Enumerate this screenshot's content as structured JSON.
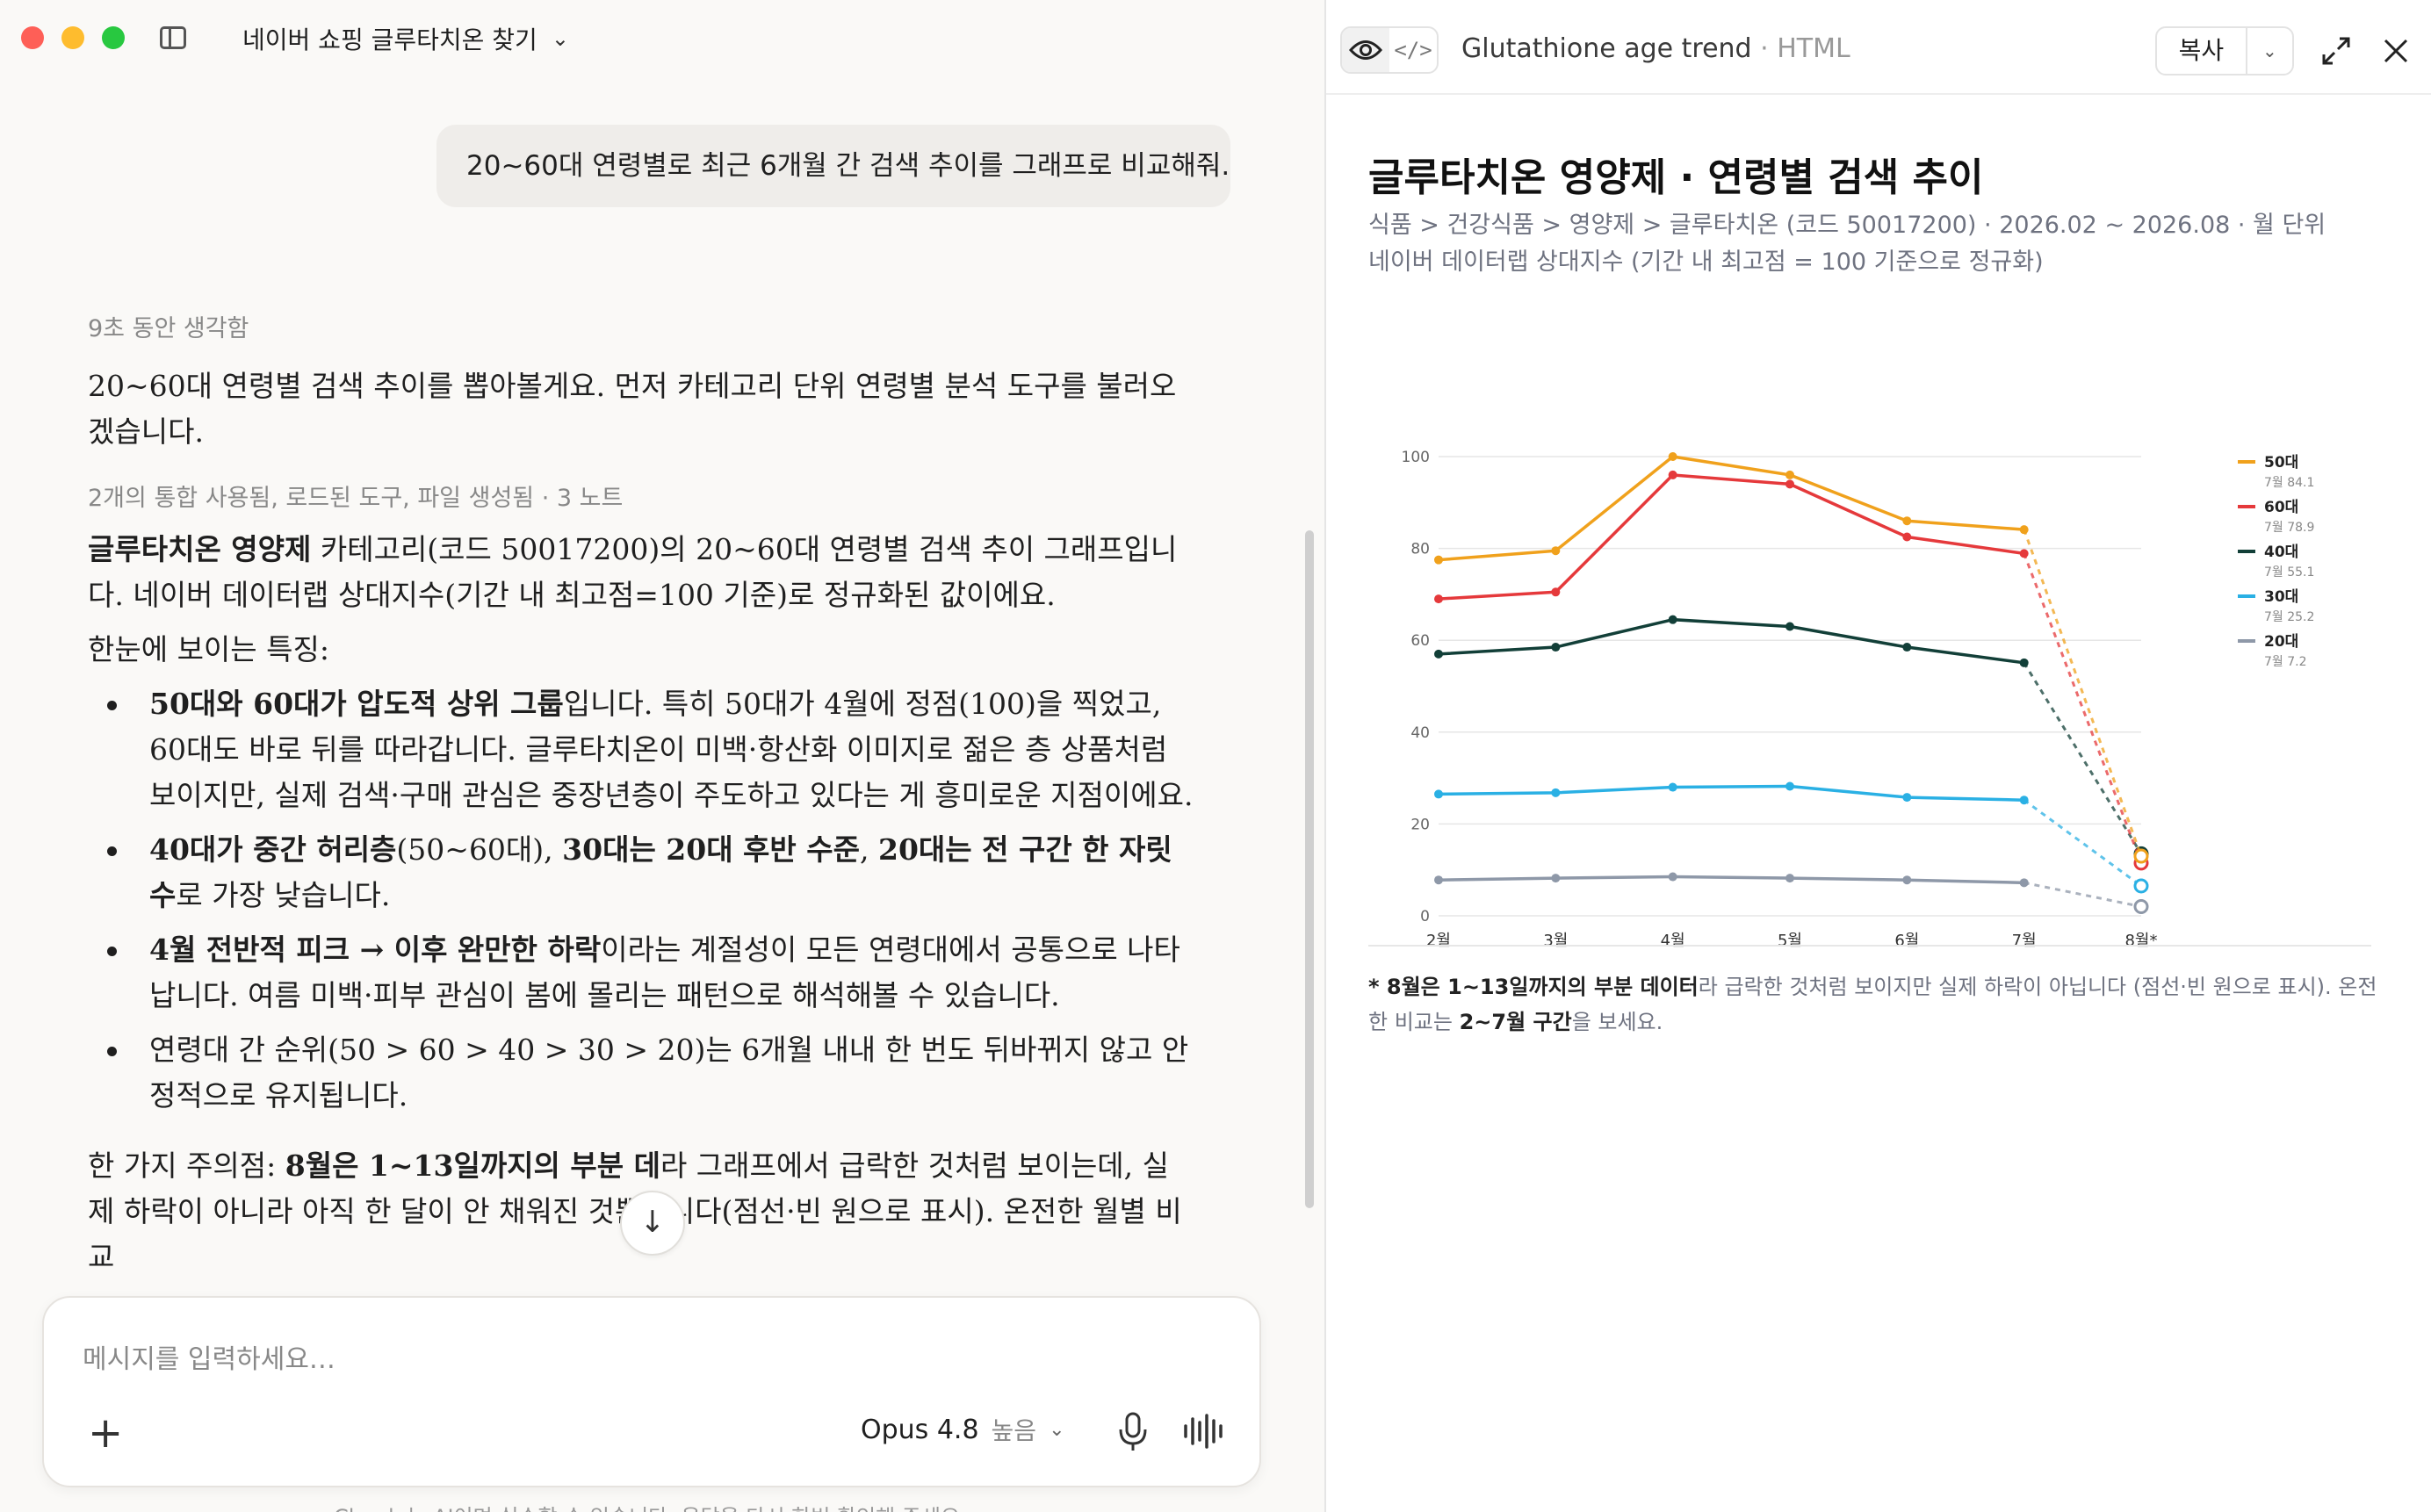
{
  "conversation": {
    "title": "네이버 쇼핑 글루타치온 찾기",
    "user_message": "20~60대 연령별로 최근 6개월 간 검색 추이를 그래프로 비교해줘.",
    "thinking_label": "9초 동안 생각함",
    "intro": "20~60대 연령별 검색 추이를 뽑아볼게요. 먼저 카테고리 단위 연령별 분석 도구를 불러오겠습니다.",
    "tools_meta": "2개의 통합 사용됨, 로드된 도구, 파일 생성됨 · 3 노트",
    "answer": {
      "p1_bold": "글루타치온 영양제",
      "p1_rest": " 카테고리(코드 50017200)의 20~60대 연령별 검색 추이 그래프입니다. 네이버 데이터랩 상대지수(기간 내 최고점=100 기준)로 정규화된 값이에요.",
      "features_heading": "한눈에 보이는 특징:",
      "b1_bold": "50대와 60대가 압도적 상위 그룹",
      "b1_rest": "입니다. 특히 50대가 4월에 정점(100)을 찍었고, 60대도 바로 뒤를 따라갑니다. 글루타치온이 미백·항산화 이미지로 젊은 층 상품처럼 보이지만, 실제 검색·구매 관심은 중장년층이 주도하고 있다는 게 흥미로운 지점이에요.",
      "b2_bold1": "40대가 중간 허리층",
      "b2_mid1": "(50~60대), ",
      "b2_bold2": "30대는 20대 후반 수준",
      "b2_mid2": ", ",
      "b2_bold3": "20대는 전 구간 한 자릿수",
      "b2_rest": "로 가장 낮습니다.",
      "b3_bold": "4월 전반적 피크 → 이후 완만한 하락",
      "b3_rest": "이라는 계절성이 모든 연령대에서 공통으로 나타납니다. 여름 미백·피부 관심이 봄에 몰리는 패턴으로 해석해볼 수 있습니다.",
      "b4": "연령대 간 순위(50 > 60 > 40 > 30 > 20)는 6개월 내내 한 번도 뒤바뀌지 않고 안정적으로 유지됩니다.",
      "caveat_lead": "한 가지 주의점: ",
      "caveat_bold": "8월은 1~13일까지의 부분 데",
      "caveat_rest": "라 그래프에서 급락한 것처럼 보이는데, 실제 하락이 아니라 아직 한 달이 안 채워진 것뿐입니다(점선·빈 원으로 표시). 온전한 월별 비교"
    },
    "scroll_down_icon": "arrow-down-icon"
  },
  "composer": {
    "placeholder": "메시지를 입력하세요…",
    "model": "Opus 4.8",
    "effort": "높음",
    "footer": "Claude는 AI이며 실수할 수 있습니다. 응답을 다시 한번 확인해 주세요."
  },
  "artifact": {
    "title": "Glutathione age trend",
    "kind": " · HTML",
    "copy_label": "복사",
    "chart_title": "글루타치온 영양제 · 연령별 검색 추이",
    "breadcrumb": "식품 > 건강식품 > 영양제 > 글루타치온 (코드 50017200) · 2026.02 ~ 2026.08 · 월 단위",
    "note": "네이버 데이터랩 상대지수 (기간 내 최고점 = 100 기준으로 정규화)",
    "footnote_bold": "* 8월은 1~13일까지의 부분 데이터",
    "footnote_mid": "라 급락한 것처럼 보이지만 실제 하락이 아닙니다 (점선·빈 원으로 표시). 온전한 비교는 ",
    "footnote_bold2": "2~7월 구간",
    "footnote_end": "을 보세요."
  },
  "chart_data": {
    "type": "line",
    "x": [
      "2월",
      "3월",
      "4월",
      "5월",
      "6월",
      "7월",
      "8월*"
    ],
    "y_ticks": [
      0,
      20,
      40,
      60,
      80,
      100
    ],
    "ylim": [
      0,
      100
    ],
    "grid": true,
    "legend_position": "right",
    "partial_last_point": true,
    "series": [
      {
        "name": "50대",
        "sub": "7월 84.1",
        "color": "#f0a11c",
        "values": [
          77.5,
          79.5,
          100,
          96,
          86,
          84.1,
          13
        ]
      },
      {
        "name": "60대",
        "sub": "7월 78.9",
        "color": "#e5393b",
        "values": [
          69,
          70.5,
          96,
          94,
          82.5,
          78.9,
          11.5
        ]
      },
      {
        "name": "40대",
        "sub": "7월 55.1",
        "color": "#123f38",
        "values": [
          57,
          58.5,
          64.5,
          63,
          58.5,
          55.1,
          13.5
        ]
      },
      {
        "name": "30대",
        "sub": "7월 25.2",
        "color": "#2ab0e4",
        "values": [
          26.5,
          26.8,
          28,
          28.2,
          25.8,
          25.2,
          6.5
        ]
      },
      {
        "name": "20대",
        "sub": "7월 7.2",
        "color": "#8e98a8",
        "values": [
          7.8,
          8.2,
          8.5,
          8.2,
          7.8,
          7.2,
          2
        ]
      }
    ]
  }
}
